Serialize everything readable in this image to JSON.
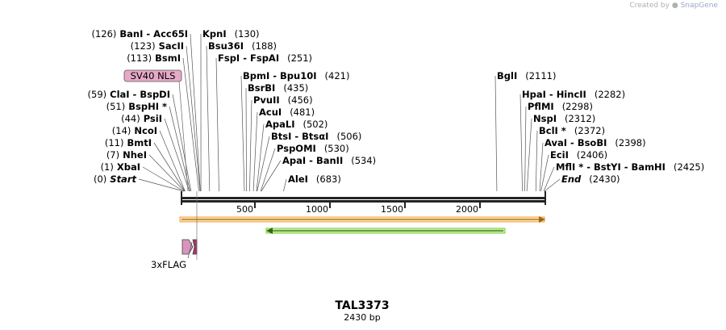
{
  "credit": {
    "prefix": "Created by",
    "brand": "SnapGene"
  },
  "plasmid": {
    "name": "TAL3373",
    "length_label": "2430 bp",
    "length": 2430
  },
  "ruler": {
    "ticks": [
      "500",
      "1000",
      "1500",
      "2000"
    ]
  },
  "left_sites": [
    {
      "pos": "(126)",
      "name": "BanI",
      "name2": "Acc65I",
      "bp": 126
    },
    {
      "pos": "(123)",
      "name": "SacII",
      "bp": 123
    },
    {
      "pos": "(113)",
      "name": "BsmI",
      "bp": 113
    },
    {
      "pos": "(59)",
      "name": "ClaI",
      "name2": "BspDI",
      "bp": 59
    },
    {
      "pos": "(51)",
      "name": "BspHI *",
      "bp": 51
    },
    {
      "pos": "(44)",
      "name": "PsiI",
      "bp": 44
    },
    {
      "pos": "(14)",
      "name": "NcoI",
      "bp": 14
    },
    {
      "pos": "(11)",
      "name": "BmtI",
      "bp": 11
    },
    {
      "pos": "(7)",
      "name": "NheI",
      "bp": 7
    },
    {
      "pos": "(1)",
      "name": "XbaI",
      "bp": 1
    },
    {
      "pos": "(0)",
      "name": "Start",
      "bp": 0,
      "italic": true
    }
  ],
  "right_sites": [
    {
      "name": "KpnI",
      "pos": "(130)",
      "bp": 130
    },
    {
      "name": "Bsu36I",
      "pos": "(188)",
      "bp": 188
    },
    {
      "name": "FspI",
      "name2": "FspAI",
      "pos": "(251)",
      "bp": 251
    },
    {
      "name": "BpmI",
      "name2": "Bpu10I",
      "pos": "(421)",
      "bp": 421
    },
    {
      "name": "BsrBI",
      "pos": "(435)",
      "bp": 435
    },
    {
      "name": "PvuII",
      "pos": "(456)",
      "bp": 456
    },
    {
      "name": "AcuI",
      "pos": "(481)",
      "bp": 481
    },
    {
      "name": "ApaLI",
      "pos": "(502)",
      "bp": 502
    },
    {
      "name": "BtsI",
      "name2": "BtsαI",
      "pos": "(506)",
      "bp": 506
    },
    {
      "name": "PspOMI",
      "pos": "(530)",
      "bp": 530
    },
    {
      "name": "ApaI",
      "name2": "BanII",
      "pos": "(534)",
      "bp": 534
    },
    {
      "name": "AleI",
      "pos": "(683)",
      "bp": 683
    },
    {
      "name": "BglI",
      "pos": "(2111)",
      "bp": 2111
    },
    {
      "name": "HpaI",
      "name2": "HincII",
      "pos": "(2282)",
      "bp": 2282
    },
    {
      "name": "PflMI",
      "pos": "(2298)",
      "bp": 2298
    },
    {
      "name": "NspI",
      "pos": "(2312)",
      "bp": 2312
    },
    {
      "name": "BclI *",
      "pos": "(2372)",
      "bp": 2372
    },
    {
      "name": "AvaI",
      "name2": "BsoBI",
      "pos": "(2398)",
      "bp": 2398
    },
    {
      "name": "EciI",
      "pos": "(2406)",
      "bp": 2406
    },
    {
      "name": "MflI *",
      "name2": "BstYI",
      "name3": "BamHI",
      "pos": "(2425)",
      "bp": 2425
    },
    {
      "name": "End",
      "pos": "(2430)",
      "bp": 2430,
      "italic": true
    }
  ],
  "features": [
    {
      "name": "SV40 NLS",
      "color": "#e7a9c8",
      "labeled_box": true
    },
    {
      "name": "3xFLAG",
      "color": "#d895bb"
    }
  ],
  "orf_colors": {
    "forward": "#f7a335",
    "reverse": "#7ccf43"
  }
}
